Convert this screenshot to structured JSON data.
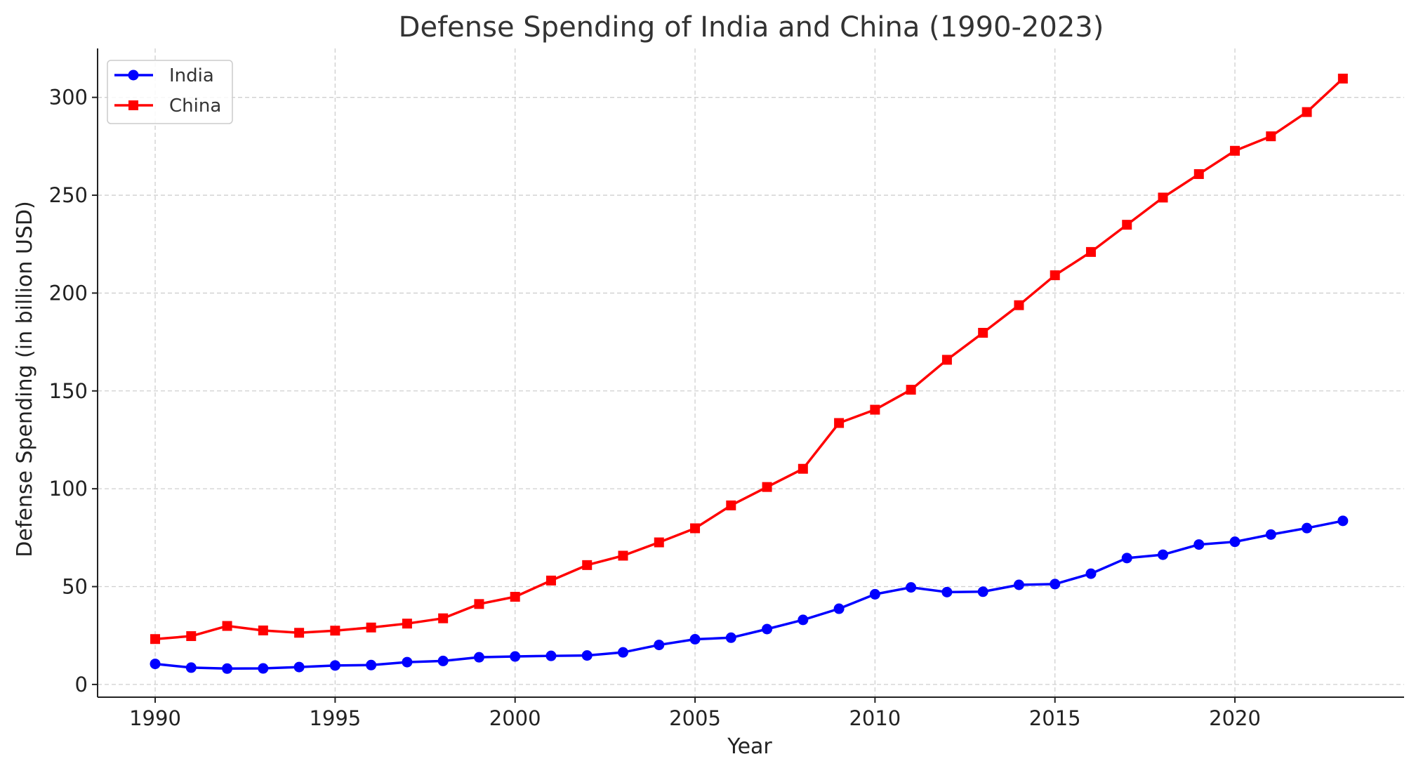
{
  "chart_data": {
    "type": "line",
    "title": "Defense Spending of India and China (1990-2023)",
    "xlabel": "Year",
    "ylabel": "Defense Spending (in billion USD)",
    "x": [
      1990,
      1991,
      1992,
      1993,
      1994,
      1995,
      1996,
      1997,
      1998,
      1999,
      2000,
      2001,
      2002,
      2003,
      2004,
      2005,
      2006,
      2007,
      2008,
      2009,
      2010,
      2011,
      2012,
      2013,
      2014,
      2015,
      2016,
      2017,
      2018,
      2019,
      2020,
      2021,
      2022,
      2023
    ],
    "xlim": [
      1988.4,
      2024.7
    ],
    "ylim": [
      -6.5,
      325
    ],
    "xticks": [
      1990,
      1995,
      2000,
      2005,
      2010,
      2015,
      2020
    ],
    "yticks": [
      0,
      50,
      100,
      150,
      200,
      250,
      300
    ],
    "grid": true,
    "legend_position": "top-left",
    "series": [
      {
        "name": "India",
        "color": "#0000ff",
        "marker": "circle",
        "values": [
          10.5,
          8.6,
          8.1,
          8.2,
          8.9,
          9.7,
          9.9,
          11.4,
          12.0,
          13.9,
          14.3,
          14.6,
          14.8,
          16.4,
          20.2,
          23.1,
          23.9,
          28.3,
          33.0,
          38.7,
          46.1,
          49.6,
          47.2,
          47.4,
          50.9,
          51.3,
          56.6,
          64.6,
          66.3,
          71.5,
          72.9,
          76.6,
          79.9,
          83.6
        ]
      },
      {
        "name": "China",
        "color": "#ff0000",
        "marker": "square",
        "values": [
          23.2,
          24.7,
          29.9,
          27.6,
          26.4,
          27.5,
          29.1,
          31.1,
          33.8,
          41.1,
          44.8,
          53.1,
          61.0,
          65.8,
          72.6,
          79.8,
          91.5,
          100.9,
          110.2,
          133.6,
          140.4,
          150.6,
          165.9,
          179.7,
          193.8,
          209.1,
          221.0,
          234.9,
          248.8,
          260.8,
          272.7,
          280.1,
          292.5,
          309.6
        ]
      }
    ]
  }
}
